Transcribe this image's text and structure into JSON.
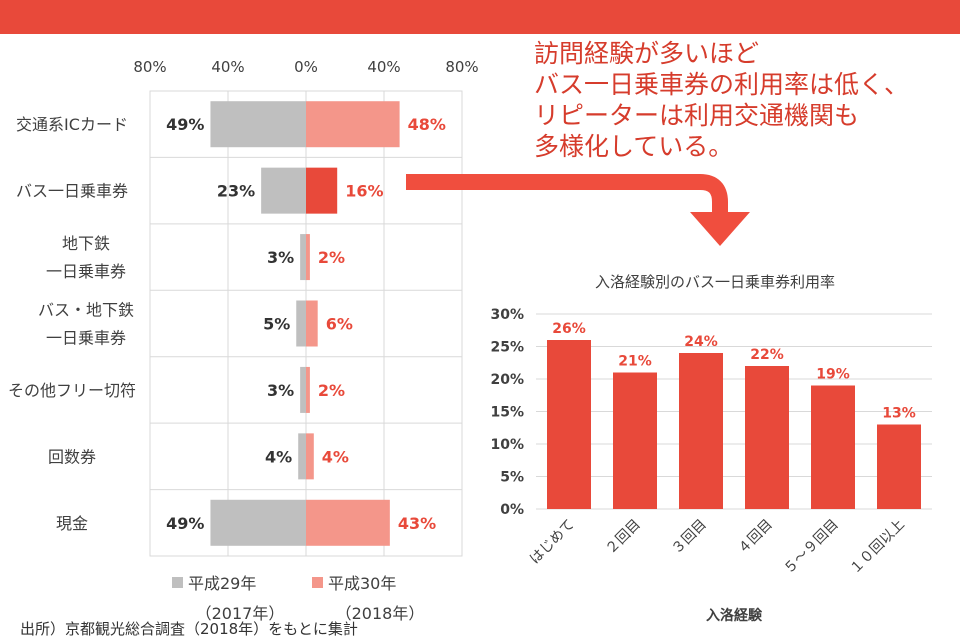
{
  "header": {
    "title_fragment": ""
  },
  "callout": {
    "lines": [
      "訪問経験が多いほど",
      "バス一日乗車券の利用率は低く、",
      "リピーターは利用交通機関も",
      "多様化している。"
    ]
  },
  "footnote": "出所）京都観光総合調査（2018年）をもとに集計",
  "colors": {
    "banner": "#e8493a",
    "gray_bar": "#bfbfbf",
    "pink_bar": "#f4968a",
    "red_bar": "#e8493a",
    "red_text": "#e8493a",
    "dark_text": "#333333",
    "arrow": "#f04e3e"
  },
  "chart_data": [
    {
      "type": "bar",
      "orientation": "horizontal-diverging",
      "categories": [
        [
          "交通系ICカード"
        ],
        [
          "バス一日乗車券"
        ],
        [
          "地下鉄",
          "一日乗車券"
        ],
        [
          "バス・地下鉄",
          "一日乗車券"
        ],
        [
          "その他フリー切符"
        ],
        [
          "回数券"
        ],
        [
          "現金"
        ]
      ],
      "series": [
        {
          "name": "平成29年",
          "name_sub": "（2017年）",
          "values": [
            49,
            23,
            3,
            5,
            3,
            4,
            49
          ],
          "labels": [
            "49%",
            "23%",
            "3%",
            "5%",
            "3%",
            "4%",
            "49%"
          ]
        },
        {
          "name": "平成30年",
          "name_sub": "（2018年）",
          "values": [
            48,
            16,
            2,
            6,
            2,
            4,
            43
          ],
          "labels": [
            "48%",
            "16%",
            "2%",
            "6%",
            "2%",
            "4%",
            "43%"
          ]
        }
      ],
      "highlight_category_index": 1,
      "x_ticks": [
        "80%",
        "40%",
        "0%",
        "40%",
        "80%"
      ],
      "xlim": [
        -80,
        80
      ],
      "grid": true,
      "legend": "bottom"
    },
    {
      "type": "bar",
      "title": "入洛経験別のバス一日乗車券利用率",
      "xlabel": "入洛経験",
      "categories": [
        "はじめて",
        "２回目",
        "３回目",
        "４回目",
        "５～９回目",
        "１０回以上"
      ],
      "values": [
        26,
        21,
        24,
        22,
        19,
        13
      ],
      "labels": [
        "26%",
        "21%",
        "24%",
        "22%",
        "19%",
        "13%"
      ],
      "y_ticks": [
        "30%",
        "25%",
        "20%",
        "15%",
        "10%",
        "5%",
        "0%"
      ],
      "ylim": [
        0,
        30
      ],
      "grid": true
    }
  ]
}
